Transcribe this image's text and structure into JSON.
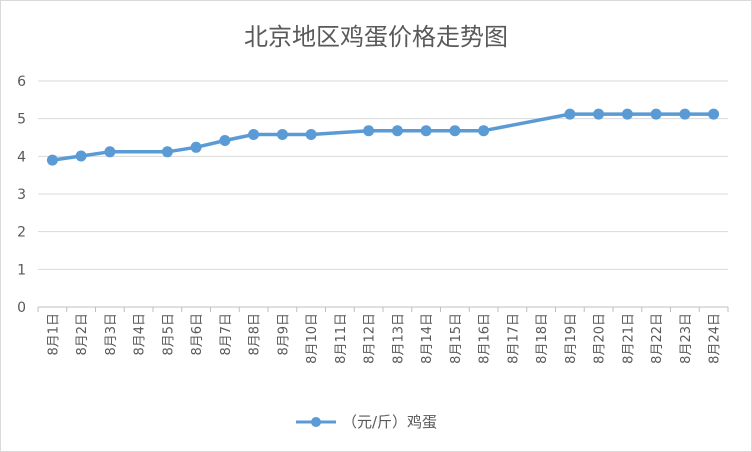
{
  "chart_data": {
    "type": "line",
    "title": "北京地区鸡蛋价格走势图",
    "categories": [
      "8月1日",
      "8月2日",
      "8月3日",
      "8月4日",
      "8月5日",
      "8月6日",
      "8月7日",
      "8月8日",
      "8月9日",
      "8月10日",
      "8月11日",
      "8月12日",
      "8月13日",
      "8月14日",
      "8月15日",
      "8月16日",
      "8月17日",
      "8月18日",
      "8月19日",
      "8月20日",
      "8月21日",
      "8月22日",
      "8月23日",
      "8月24日"
    ],
    "series": [
      {
        "name": "（元/斤）鸡蛋",
        "color": "#5b9bd5",
        "values": [
          3.9,
          4.01,
          4.12,
          null,
          4.12,
          4.24,
          4.42,
          4.58,
          4.58,
          4.58,
          null,
          4.68,
          4.68,
          4.68,
          4.68,
          4.68,
          null,
          null,
          5.12,
          5.12,
          5.12,
          5.12,
          5.12,
          5.12
        ]
      }
    ],
    "ylim": [
      0,
      6
    ],
    "yticks": [
      "0",
      "1",
      "2",
      "3",
      "4",
      "5",
      "6"
    ],
    "grid": true,
    "legend": "bottom"
  }
}
